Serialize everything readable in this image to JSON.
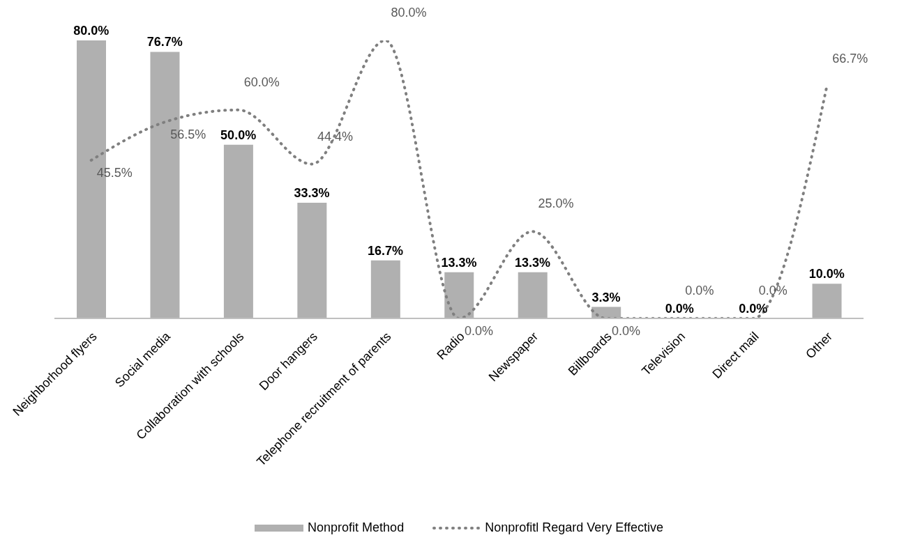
{
  "chart_data": {
    "type": "bar",
    "categories": [
      "Neighborhood flyers",
      "Social media",
      "Collaboration with schools",
      "Door hangers",
      "Telephone recruitment of parents",
      "Radio",
      "Newspaper",
      "Billboards",
      "Television",
      "Direct mail",
      "Other"
    ],
    "series": [
      {
        "name": "Nonprofit Method",
        "color": "#b0b0b0",
        "values": [
          80.0,
          76.7,
          50.0,
          33.3,
          16.7,
          13.3,
          13.3,
          3.3,
          0.0,
          0.0,
          10.0
        ],
        "value_labels": [
          "80.0%",
          "76.7%",
          "50.0%",
          "33.3%",
          "16.7%",
          "13.3%",
          "13.3%",
          "3.3%",
          "0.0%",
          "0.0%",
          "10.0%"
        ]
      },
      {
        "name": "Nonprofitl Regard Very Effective",
        "type": "line",
        "color": "#7f7f7f",
        "line_style": "dotted",
        "marker": "none",
        "values": [
          45.5,
          56.5,
          60.0,
          44.4,
          80.0,
          0.0,
          25.0,
          0.0,
          0.0,
          0.0,
          66.7
        ],
        "value_labels": [
          "45.5%",
          "56.5%",
          "60.0%",
          "44.4%",
          "80.0%",
          "0.0%",
          "25.0%",
          "0.0%",
          "0.0%",
          "0.0%",
          "66.7%"
        ]
      }
    ],
    "legend": "bottom",
    "grid": false
  }
}
